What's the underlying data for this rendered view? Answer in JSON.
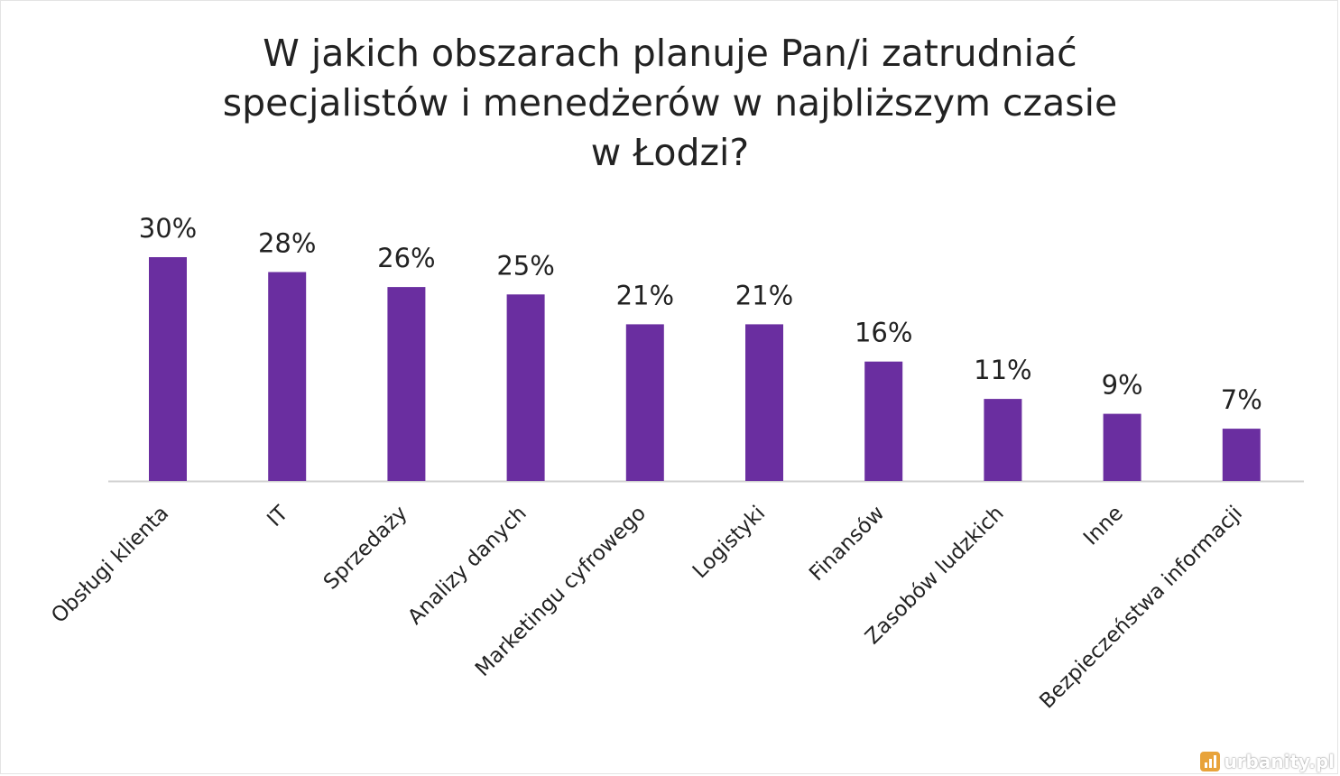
{
  "chart_data": {
    "type": "bar",
    "title_lines": [
      "W jakich obszarach planuje Pan/i zatrudniać",
      "specjalistów i menedżerów w najbliższym czasie",
      "w Łodzi?"
    ],
    "categories": [
      "Obsługi klienta",
      "IT",
      "Sprzedaży",
      "Analizy danych",
      "Marketingu cyfrowego",
      "Logistyki",
      "Finansów",
      "Zasobów ludzkich",
      "Inne",
      "Bezpieczeństwa informacji"
    ],
    "values": [
      30,
      28,
      26,
      25,
      21,
      21,
      16,
      11,
      9,
      7
    ],
    "value_labels": [
      "30%",
      "28%",
      "26%",
      "25%",
      "21%",
      "21%",
      "16%",
      "11%",
      "9%",
      "7%"
    ],
    "bar_color": "#6a2ea0",
    "axis_color": "#d0d0d0",
    "ylim": [
      0,
      30
    ],
    "grid": false,
    "legend": "none"
  },
  "watermark": {
    "text": "urbanity.pl",
    "icon": "bar-chart-logo-icon",
    "icon_color": "#e8a33a"
  }
}
